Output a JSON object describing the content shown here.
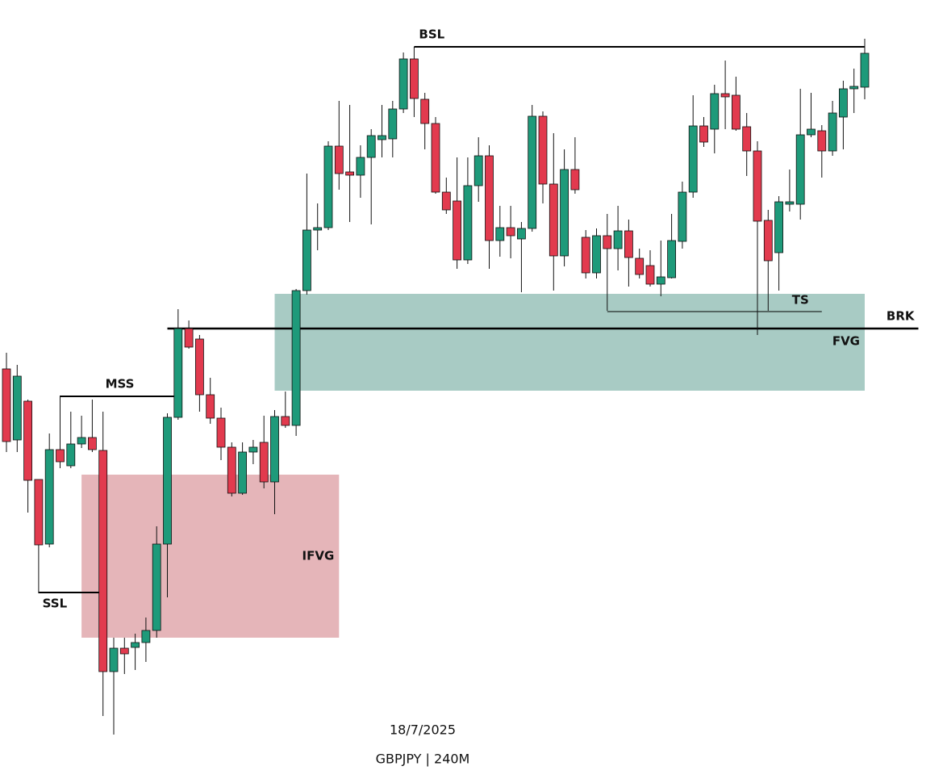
{
  "chart_data": {
    "type": "candlestick",
    "footer": [
      "18/7/2025",
      "GBPJPY | 240M"
    ],
    "ylim": [
      0,
      970
    ],
    "up_color": "#1e9a7a",
    "down_color": "#e23a4e",
    "open": [
      513,
      425,
      473,
      376,
      296,
      413,
      393,
      420,
      428,
      412,
      138,
      167,
      168,
      174,
      189,
      296,
      453,
      563,
      550,
      481,
      452,
      416,
      359,
      410,
      422,
      373,
      454,
      443,
      610,
      685,
      688,
      789,
      757,
      753,
      775,
      797,
      798,
      835,
      897,
      847,
      817,
      732,
      721,
      648,
      740,
      777,
      672,
      688,
      674,
      687,
      826,
      742,
      653,
      760,
      676,
      632,
      678,
      662,
      684,
      650,
      641,
      618,
      626,
      671,
      732,
      814,
      810,
      854,
      852,
      813,
      783,
      697,
      657,
      717,
      717,
      803,
      808,
      783,
      825,
      860,
      862
    ],
    "high": [
      533,
      518,
      475,
      376,
      433,
      480,
      460,
      455,
      475,
      460,
      180,
      180,
      185,
      205,
      318,
      458,
      587,
      573,
      555,
      502,
      465,
      422,
      422,
      425,
      455,
      462,
      485,
      612,
      755,
      718,
      795,
      845,
      840,
      790,
      810,
      840,
      845,
      905,
      912,
      855,
      825,
      750,
      775,
      775,
      800,
      790,
      715,
      715,
      695,
      840,
      832,
      805,
      785,
      800,
      685,
      687,
      705,
      715,
      698,
      662,
      660,
      672,
      705,
      745,
      852,
      825,
      865,
      895,
      875,
      830,
      795,
      710,
      727,
      760,
      860,
      855,
      815,
      845,
      870,
      885,
      922
    ],
    "low": [
      410,
      410,
      335,
      235,
      292,
      390,
      390,
      415,
      410,
      83,
      60,
      135,
      140,
      150,
      180,
      230,
      450,
      538,
      460,
      445,
      400,
      355,
      357,
      395,
      365,
      333,
      440,
      430,
      605,
      660,
      685,
      735,
      695,
      725,
      692,
      775,
      775,
      830,
      825,
      785,
      730,
      705,
      637,
      643,
      720,
      637,
      652,
      650,
      608,
      683,
      718,
      610,
      640,
      730,
      625,
      625,
      585,
      635,
      615,
      625,
      615,
      603,
      625,
      662,
      725,
      788,
      780,
      810,
      808,
      752,
      555,
      585,
      610,
      708,
      698,
      800,
      750,
      777,
      785,
      830,
      847
    ],
    "close": [
      423,
      504,
      375,
      295,
      413,
      398,
      420,
      428,
      413,
      138,
      167,
      160,
      174,
      189,
      296,
      453,
      563,
      540,
      481,
      452,
      416,
      359,
      410,
      416,
      373,
      454,
      443,
      610,
      685,
      688,
      789,
      755,
      753,
      775,
      802,
      802,
      835,
      897,
      848,
      817,
      732,
      710,
      648,
      740,
      777,
      672,
      688,
      678,
      687,
      826,
      742,
      653,
      760,
      735,
      632,
      678,
      662,
      684,
      651,
      630,
      618,
      627,
      672,
      732,
      814,
      794,
      854,
      850,
      810,
      783,
      696,
      647,
      720,
      720,
      803,
      810,
      783,
      830,
      860,
      863,
      904
    ],
    "zones": [
      {
        "label": "FVG",
        "top": 606,
        "bottom": 486,
        "from": 25,
        "to": 80,
        "color": "#a8cbc4"
      },
      {
        "label": "IFVG",
        "top": 382,
        "bottom": 180,
        "from": 7,
        "to": 31,
        "color": "#e5b5b9"
      }
    ],
    "levels": [
      {
        "label": "BSL",
        "value": 912,
        "from": 38,
        "to": 80,
        "width": 2
      },
      {
        "label": "MSS",
        "value": 479,
        "from": 5,
        "to": 16,
        "width": 2
      },
      {
        "label": "SSL",
        "value": 236,
        "from": 3,
        "to": 9,
        "width": 2
      },
      {
        "label": "BRK",
        "value": 563,
        "from": 15,
        "to": 85,
        "width": 2.5
      },
      {
        "label": "TS",
        "value": 584,
        "from": 56,
        "to": 76,
        "width": 1
      }
    ]
  }
}
